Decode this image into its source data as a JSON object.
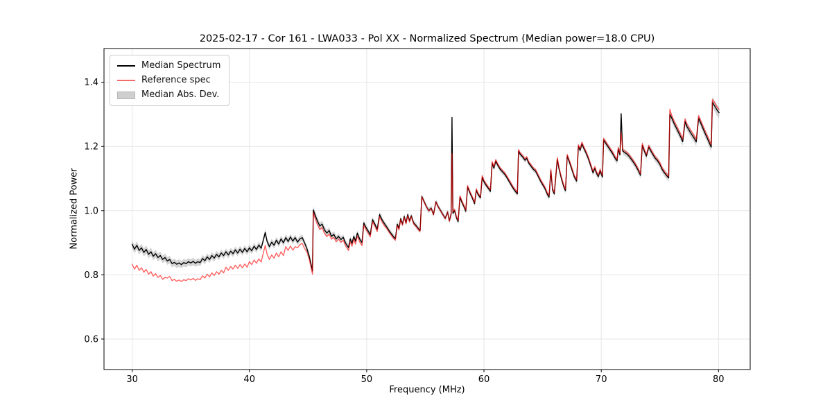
{
  "figure": {
    "title": "2025-02-17 - Cor 161 - LWA033 - Pol XX - Normalized Spectrum (Median power=18.0 CPU)",
    "background": "#ffffff"
  },
  "axes": {
    "xlabel": "Frequency (MHz)",
    "ylabel": "Normalized Power",
    "xlim": [
      27.6,
      82.7
    ],
    "ylim": [
      0.505,
      1.505
    ],
    "xticks": [
      30,
      40,
      50,
      60,
      70,
      80
    ],
    "xtick_labels": [
      "30",
      "40",
      "50",
      "60",
      "70",
      "80"
    ],
    "yticks": [
      0.6,
      0.8,
      1.0,
      1.2,
      1.4
    ],
    "ytick_labels": [
      "0.6",
      "0.8",
      "1.0",
      "1.2",
      "1.4"
    ],
    "grid": true,
    "grid_color": "#e5e5e5",
    "frame_color": "#000000",
    "tick_color": "#000000"
  },
  "legend": {
    "position": "upper left",
    "entries": [
      {
        "label": "Median Spectrum",
        "type": "line",
        "color": "#000000"
      },
      {
        "label": "Reference spec",
        "type": "line",
        "color": "#f26b6b"
      },
      {
        "label": "Median Abs. Dev.",
        "type": "patch",
        "color": "#cfcfcf"
      }
    ]
  },
  "chart_data": {
    "type": "line",
    "title": "2025-02-17 - Cor 161 - LWA033 - Pol XX - Normalized Spectrum (Median power=18.0 CPU)",
    "xlabel": "Frequency (MHz)",
    "ylabel": "Normalized Power",
    "xlim": [
      27.6,
      82.7
    ],
    "ylim": [
      0.505,
      1.505
    ],
    "x": [
      30.0,
      30.2,
      30.4,
      30.6,
      30.8,
      31.0,
      31.2,
      31.4,
      31.6,
      31.8,
      32.0,
      32.2,
      32.4,
      32.6,
      32.8,
      33.0,
      33.2,
      33.4,
      33.6,
      33.8,
      34.0,
      34.2,
      34.4,
      34.6,
      34.8,
      35.0,
      35.2,
      35.4,
      35.6,
      35.8,
      36.0,
      36.2,
      36.4,
      36.6,
      36.8,
      37.0,
      37.2,
      37.4,
      37.6,
      37.8,
      38.0,
      38.2,
      38.4,
      38.6,
      38.8,
      39.0,
      39.2,
      39.4,
      39.6,
      39.8,
      40.0,
      40.2,
      40.4,
      40.6,
      40.8,
      41.0,
      41.2,
      41.35,
      41.5,
      41.7,
      41.9,
      42.1,
      42.3,
      42.5,
      42.7,
      42.9,
      43.1,
      43.3,
      43.5,
      43.7,
      43.9,
      44.1,
      44.3,
      44.5,
      44.7,
      44.9,
      45.1,
      45.25,
      45.38,
      45.45,
      45.6,
      45.8,
      46.0,
      46.2,
      46.4,
      46.6,
      46.8,
      47.0,
      47.2,
      47.4,
      47.6,
      47.8,
      48.0,
      48.2,
      48.45,
      48.6,
      48.75,
      48.9,
      49.05,
      49.2,
      49.4,
      49.6,
      49.75,
      49.9,
      50.1,
      50.3,
      50.5,
      50.7,
      50.9,
      51.1,
      51.3,
      51.5,
      51.7,
      51.9,
      52.1,
      52.3,
      52.45,
      52.6,
      52.75,
      52.9,
      53.05,
      53.2,
      53.35,
      53.5,
      53.65,
      53.8,
      54.0,
      54.2,
      54.4,
      54.55,
      54.7,
      54.9,
      55.1,
      55.3,
      55.5,
      55.7,
      55.9,
      56.1,
      56.3,
      56.5,
      56.7,
      56.9,
      57.05,
      57.2,
      57.27,
      57.35,
      57.5,
      57.65,
      57.8,
      57.95,
      58.1,
      58.3,
      58.45,
      58.6,
      58.8,
      59.0,
      59.2,
      59.35,
      59.5,
      59.7,
      59.85,
      60.0,
      60.2,
      60.4,
      60.55,
      60.7,
      60.85,
      61.0,
      61.2,
      61.4,
      61.6,
      61.8,
      62.0,
      62.2,
      62.4,
      62.6,
      62.85,
      62.95,
      63.1,
      63.3,
      63.5,
      63.65,
      63.8,
      64.0,
      64.2,
      64.4,
      64.6,
      64.8,
      65.0,
      65.2,
      65.4,
      65.55,
      65.7,
      65.85,
      66.0,
      66.25,
      66.4,
      66.6,
      66.8,
      66.95,
      67.1,
      67.3,
      67.5,
      67.7,
      67.9,
      68.05,
      68.2,
      68.35,
      68.5,
      68.7,
      68.9,
      69.1,
      69.3,
      69.45,
      69.6,
      69.75,
      69.9,
      70.1,
      70.2,
      70.4,
      70.6,
      70.8,
      71.0,
      71.2,
      71.35,
      71.45,
      71.6,
      71.7,
      71.82,
      72.0,
      72.2,
      72.4,
      72.6,
      72.8,
      73.0,
      73.2,
      73.35,
      73.5,
      73.65,
      73.85,
      74.05,
      74.2,
      74.4,
      74.6,
      74.8,
      75.0,
      75.2,
      75.4,
      75.6,
      75.75,
      75.85,
      76.0,
      76.2,
      76.4,
      76.6,
      76.8,
      76.95,
      77.15,
      77.3,
      77.5,
      77.7,
      77.9,
      78.1,
      78.3,
      78.5,
      78.7,
      78.9,
      79.1,
      79.25,
      79.38,
      79.48,
      79.6,
      79.75,
      79.9,
      80.05
    ],
    "series": [
      {
        "name": "Median Spectrum",
        "color": "#000000",
        "y": [
          0.895,
          0.88,
          0.892,
          0.876,
          0.884,
          0.87,
          0.879,
          0.864,
          0.872,
          0.858,
          0.866,
          0.854,
          0.86,
          0.848,
          0.854,
          0.843,
          0.848,
          0.835,
          0.839,
          0.833,
          0.837,
          0.832,
          0.838,
          0.835,
          0.841,
          0.837,
          0.842,
          0.836,
          0.841,
          0.838,
          0.851,
          0.844,
          0.856,
          0.848,
          0.86,
          0.852,
          0.864,
          0.856,
          0.868,
          0.86,
          0.872,
          0.862,
          0.874,
          0.866,
          0.878,
          0.868,
          0.88,
          0.87,
          0.882,
          0.872,
          0.884,
          0.875,
          0.889,
          0.879,
          0.893,
          0.883,
          0.91,
          0.932,
          0.905,
          0.888,
          0.902,
          0.892,
          0.908,
          0.896,
          0.912,
          0.9,
          0.916,
          0.904,
          0.918,
          0.905,
          0.916,
          0.902,
          0.912,
          0.916,
          0.9,
          0.882,
          0.858,
          0.834,
          0.812,
          1.002,
          0.986,
          0.968,
          0.952,
          0.958,
          0.94,
          0.93,
          0.938,
          0.92,
          0.926,
          0.912,
          0.92,
          0.91,
          0.917,
          0.899,
          0.885,
          0.912,
          0.898,
          0.92,
          0.905,
          0.93,
          0.912,
          0.9,
          0.962,
          0.95,
          0.938,
          0.925,
          0.972,
          0.958,
          0.942,
          0.988,
          0.972,
          0.96,
          0.95,
          0.938,
          0.928,
          0.918,
          0.913,
          0.958,
          0.945,
          0.975,
          0.958,
          0.982,
          0.962,
          0.988,
          0.968,
          0.984,
          0.962,
          0.954,
          0.944,
          0.938,
          1.044,
          1.028,
          1.012,
          1.0,
          1.008,
          0.988,
          1.028,
          1.012,
          1.0,
          0.988,
          0.976,
          0.996,
          0.968,
          0.99,
          1.29,
          0.992,
          1.0,
          0.978,
          0.966,
          1.042,
          1.028,
          1.012,
          0.998,
          1.074,
          1.056,
          1.04,
          1.022,
          1.064,
          1.05,
          1.04,
          1.104,
          1.09,
          1.078,
          1.068,
          1.06,
          1.148,
          1.132,
          1.154,
          1.14,
          1.128,
          1.12,
          1.112,
          1.1,
          1.088,
          1.075,
          1.064,
          1.052,
          1.185,
          1.175,
          1.167,
          1.157,
          1.163,
          1.149,
          1.139,
          1.129,
          1.123,
          1.109,
          1.094,
          1.081,
          1.069,
          1.051,
          1.042,
          1.124,
          1.064,
          1.052,
          1.16,
          1.13,
          1.1,
          1.075,
          1.062,
          1.17,
          1.15,
          1.128,
          1.105,
          1.092,
          1.2,
          1.188,
          1.208,
          1.195,
          1.18,
          1.162,
          1.14,
          1.118,
          1.132,
          1.116,
          1.106,
          1.124,
          1.105,
          1.22,
          1.209,
          1.198,
          1.187,
          1.176,
          1.162,
          1.155,
          1.192,
          1.174,
          1.302,
          1.186,
          1.181,
          1.176,
          1.168,
          1.158,
          1.148,
          1.136,
          1.122,
          1.11,
          1.204,
          1.188,
          1.17,
          1.198,
          1.188,
          1.175,
          1.163,
          1.155,
          1.144,
          1.128,
          1.117,
          1.108,
          1.102,
          1.3,
          1.289,
          1.272,
          1.258,
          1.243,
          1.228,
          1.215,
          1.278,
          1.262,
          1.25,
          1.238,
          1.227,
          1.214,
          1.288,
          1.271,
          1.254,
          1.237,
          1.221,
          1.208,
          1.198,
          1.338,
          1.33,
          1.321,
          1.312,
          1.305
        ]
      },
      {
        "name": "Reference spec",
        "color": "rgba(255,0,0,0.62)",
        "y": [
          0.833,
          0.818,
          0.83,
          0.814,
          0.822,
          0.808,
          0.817,
          0.802,
          0.81,
          0.796,
          0.804,
          0.792,
          0.798,
          0.786,
          0.792,
          0.79,
          0.795,
          0.782,
          0.786,
          0.78,
          0.784,
          0.779,
          0.785,
          0.782,
          0.788,
          0.784,
          0.789,
          0.783,
          0.788,
          0.785,
          0.797,
          0.79,
          0.802,
          0.794,
          0.806,
          0.798,
          0.81,
          0.802,
          0.814,
          0.806,
          0.824,
          0.814,
          0.826,
          0.818,
          0.83,
          0.82,
          0.832,
          0.822,
          0.834,
          0.824,
          0.841,
          0.832,
          0.846,
          0.836,
          0.85,
          0.84,
          0.87,
          0.892,
          0.865,
          0.848,
          0.862,
          0.852,
          0.868,
          0.856,
          0.872,
          0.86,
          0.888,
          0.876,
          0.89,
          0.877,
          0.888,
          0.884,
          0.894,
          0.898,
          0.882,
          0.872,
          0.848,
          0.824,
          0.802,
          0.995,
          0.975,
          0.957,
          0.941,
          0.947,
          0.929,
          0.919,
          0.927,
          0.911,
          0.917,
          0.903,
          0.911,
          0.901,
          0.908,
          0.89,
          0.876,
          0.903,
          0.889,
          0.911,
          0.896,
          0.921,
          0.903,
          0.891,
          0.955,
          0.943,
          0.931,
          0.918,
          0.965,
          0.951,
          0.935,
          0.981,
          0.965,
          0.953,
          0.945,
          0.933,
          0.923,
          0.913,
          0.908,
          0.953,
          0.94,
          0.972,
          0.955,
          0.979,
          0.959,
          0.985,
          0.965,
          0.981,
          0.959,
          0.951,
          0.941,
          0.935,
          1.043,
          1.027,
          1.011,
          0.999,
          1.007,
          0.987,
          1.027,
          1.011,
          0.999,
          0.987,
          0.975,
          0.995,
          0.967,
          0.989,
          1.178,
          0.996,
          1.004,
          0.982,
          0.97,
          1.046,
          1.032,
          1.016,
          1.002,
          1.078,
          1.06,
          1.044,
          1.026,
          1.068,
          1.054,
          1.044,
          1.109,
          1.095,
          1.083,
          1.073,
          1.065,
          1.153,
          1.137,
          1.159,
          1.145,
          1.133,
          1.125,
          1.117,
          1.105,
          1.093,
          1.08,
          1.069,
          1.057,
          1.19,
          1.18,
          1.172,
          1.162,
          1.168,
          1.154,
          1.144,
          1.134,
          1.128,
          1.114,
          1.099,
          1.086,
          1.074,
          1.056,
          1.047,
          1.129,
          1.069,
          1.057,
          1.165,
          1.135,
          1.105,
          1.08,
          1.067,
          1.175,
          1.155,
          1.133,
          1.11,
          1.097,
          1.205,
          1.193,
          1.213,
          1.2,
          1.185,
          1.167,
          1.145,
          1.123,
          1.137,
          1.121,
          1.111,
          1.129,
          1.11,
          1.225,
          1.214,
          1.203,
          1.192,
          1.181,
          1.167,
          1.16,
          1.197,
          1.179,
          1.242,
          1.191,
          1.186,
          1.181,
          1.173,
          1.163,
          1.153,
          1.141,
          1.127,
          1.115,
          1.209,
          1.193,
          1.175,
          1.203,
          1.193,
          1.18,
          1.168,
          1.16,
          1.149,
          1.133,
          1.122,
          1.113,
          1.107,
          1.316,
          1.297,
          1.28,
          1.266,
          1.251,
          1.236,
          1.223,
          1.286,
          1.27,
          1.258,
          1.246,
          1.235,
          1.222,
          1.296,
          1.279,
          1.262,
          1.245,
          1.229,
          1.216,
          1.206,
          1.346,
          1.34,
          1.331,
          1.322,
          1.315
        ]
      }
    ],
    "band": {
      "name": "Median Abs. Dev.",
      "around": "Median Spectrum",
      "color": "rgba(0,0,0,0.17)",
      "mad_breakpoints": [
        [
          30,
          0.013
        ],
        [
          36,
          0.011
        ],
        [
          44,
          0.01
        ],
        [
          45.3,
          0.01
        ],
        [
          45.5,
          0.012
        ],
        [
          48,
          0.009
        ],
        [
          57,
          0.008
        ],
        [
          57.27,
          0.013
        ],
        [
          57.5,
          0.008
        ],
        [
          65,
          0.008
        ],
        [
          70,
          0.01
        ],
        [
          75.7,
          0.011
        ],
        [
          75.85,
          0.013
        ],
        [
          79.3,
          0.013
        ],
        [
          79.48,
          0.017
        ],
        [
          80.05,
          0.017
        ]
      ]
    },
    "legend_position": "upper left"
  }
}
